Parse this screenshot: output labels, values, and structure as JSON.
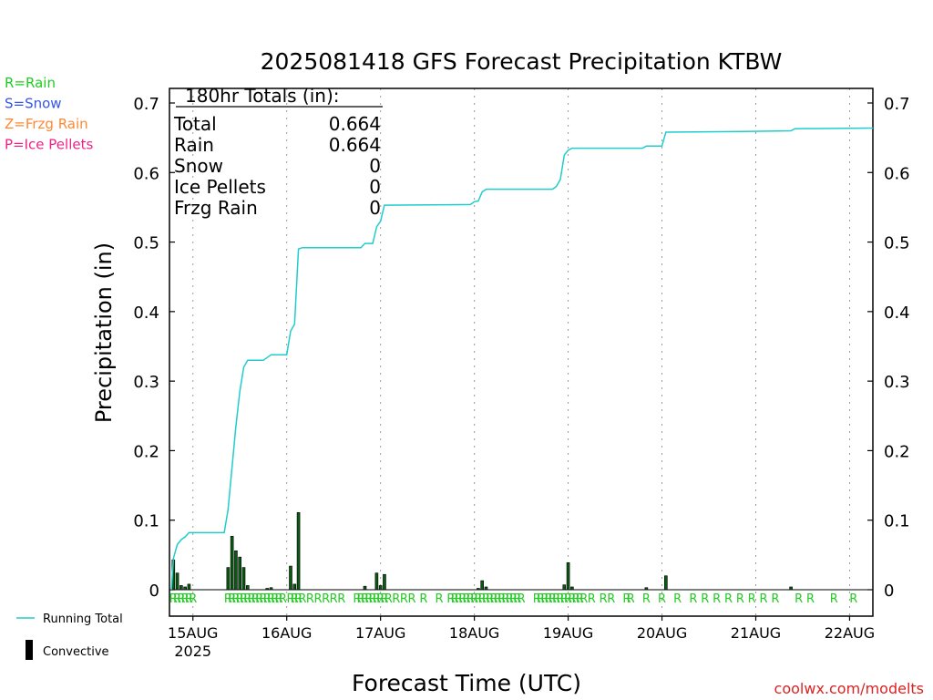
{
  "chart_data": {
    "type": "bar",
    "title": "2025081418 GFS Forecast Precipitation KTBW",
    "xlabel": "Forecast Time (UTC)",
    "ylabel": "Precipitation (in)",
    "ylim": [
      0,
      0.73
    ],
    "yticks": [
      0,
      0.1,
      0.2,
      0.3,
      0.4,
      0.5,
      0.6,
      0.7
    ],
    "ytick_labels": [
      "0",
      "0.1",
      "0.2",
      "0.3",
      "0.4",
      "0.5",
      "0.6",
      "0.7"
    ],
    "x_unit": "hours since 2025-08-14 18 UTC",
    "xlim": [
      0,
      180
    ],
    "xticks": [
      {
        "hour": 6,
        "label": "15AUG",
        "sublabel": "2025"
      },
      {
        "hour": 30,
        "label": "16AUG"
      },
      {
        "hour": 54,
        "label": "17AUG"
      },
      {
        "hour": 78,
        "label": "18AUG"
      },
      {
        "hour": 102,
        "label": "19AUG"
      },
      {
        "hour": 126,
        "label": "20AUG"
      },
      {
        "hour": 150,
        "label": "21AUG"
      },
      {
        "hour": 174,
        "label": "22AUG"
      }
    ],
    "totals_box": {
      "heading": "180hr Totals (in):",
      "rows": [
        {
          "label": "Total",
          "value": "0.664"
        },
        {
          "label": "Rain",
          "value": "0.664"
        },
        {
          "label": "Snow",
          "value": "0"
        },
        {
          "label": "Ice Pellets",
          "value": "0"
        },
        {
          "label": "Frzg Rain",
          "value": "0"
        }
      ]
    },
    "ptype_legend": [
      {
        "label": "R=Rain",
        "color": "#22cc22"
      },
      {
        "label": "S=Snow",
        "color": "#3355ee"
      },
      {
        "label": "Z=Frzg Rain",
        "color": "#ff8833"
      },
      {
        "label": "P=Ice Pellets",
        "color": "#ee2288"
      }
    ],
    "series_legend": [
      {
        "label": "Running Total",
        "color": "#22cccc",
        "kind": "line"
      },
      {
        "label": "Convective",
        "color": "#000000",
        "kind": "bar"
      }
    ],
    "series": [
      {
        "name": "Running Total",
        "kind": "line",
        "color": "#22cccc",
        "points": [
          [
            0.5,
            0.0
          ],
          [
            1,
            0.045
          ],
          [
            2,
            0.065
          ],
          [
            3,
            0.072
          ],
          [
            4,
            0.076
          ],
          [
            5,
            0.082
          ],
          [
            14,
            0.082
          ],
          [
            15,
            0.115
          ],
          [
            16,
            0.175
          ],
          [
            17,
            0.235
          ],
          [
            18,
            0.285
          ],
          [
            19,
            0.32
          ],
          [
            20,
            0.33
          ],
          [
            24,
            0.33
          ],
          [
            26,
            0.338
          ],
          [
            30,
            0.338
          ],
          [
            31,
            0.372
          ],
          [
            32,
            0.382
          ],
          [
            33,
            0.49
          ],
          [
            34,
            0.492
          ],
          [
            49,
            0.492
          ],
          [
            50,
            0.498
          ],
          [
            52,
            0.498
          ],
          [
            53,
            0.522
          ],
          [
            54,
            0.53
          ],
          [
            55,
            0.553
          ],
          [
            77,
            0.554
          ],
          [
            78,
            0.558
          ],
          [
            79,
            0.559
          ],
          [
            80,
            0.572
          ],
          [
            81,
            0.576
          ],
          [
            98,
            0.576
          ],
          [
            99,
            0.58
          ],
          [
            100,
            0.59
          ],
          [
            101,
            0.625
          ],
          [
            102,
            0.632
          ],
          [
            103,
            0.635
          ],
          [
            121,
            0.635
          ],
          [
            122,
            0.638
          ],
          [
            126,
            0.638
          ],
          [
            127,
            0.658
          ],
          [
            147,
            0.659
          ],
          [
            159,
            0.66
          ],
          [
            160,
            0.663
          ],
          [
            180,
            0.664
          ]
        ]
      },
      {
        "name": "Convective",
        "kind": "bar",
        "color": "#000000",
        "bars": [
          [
            1,
            0.043
          ],
          [
            2,
            0.024
          ],
          [
            3,
            0.006
          ],
          [
            4,
            0.004
          ],
          [
            5,
            0.008
          ],
          [
            15,
            0.032
          ],
          [
            16,
            0.077
          ],
          [
            17,
            0.056
          ],
          [
            18,
            0.047
          ],
          [
            19,
            0.032
          ],
          [
            20,
            0.006
          ],
          [
            25,
            0.002
          ],
          [
            26,
            0.003
          ],
          [
            31,
            0.034
          ],
          [
            32,
            0.008
          ],
          [
            33,
            0.111
          ],
          [
            50,
            0.005
          ],
          [
            53,
            0.024
          ],
          [
            54,
            0.006
          ],
          [
            55,
            0.022
          ],
          [
            79,
            0.002
          ],
          [
            80,
            0.013
          ],
          [
            81,
            0.004
          ],
          [
            101,
            0.007
          ],
          [
            102,
            0.039
          ],
          [
            103,
            0.004
          ],
          [
            122,
            0.003
          ],
          [
            127,
            0.02
          ],
          [
            159,
            0.004
          ]
        ]
      }
    ],
    "ptype_hours": [
      1,
      2,
      3,
      4,
      5,
      6,
      15,
      16,
      17,
      18,
      19,
      20,
      21,
      22,
      23,
      24,
      25,
      26,
      27,
      28,
      29,
      31,
      32,
      33,
      34,
      36,
      38,
      40,
      42,
      44,
      48,
      49,
      50,
      51,
      52,
      53,
      54,
      55,
      56,
      58,
      60,
      62,
      65,
      69,
      72,
      73,
      74,
      75,
      76,
      77,
      78,
      79,
      80,
      81,
      82,
      83,
      84,
      85,
      86,
      87,
      88,
      89,
      90,
      94,
      95,
      96,
      97,
      98,
      99,
      100,
      101,
      102,
      103,
      104,
      105,
      106,
      108,
      111,
      113,
      117,
      118,
      122,
      126,
      130,
      134,
      137,
      140,
      143,
      146,
      149,
      152,
      155,
      161,
      164,
      170,
      175
    ],
    "ptype_letter": "R",
    "credit": "coolwx.com/modelts",
    "grid": "vertical dotted at day ticks"
  }
}
